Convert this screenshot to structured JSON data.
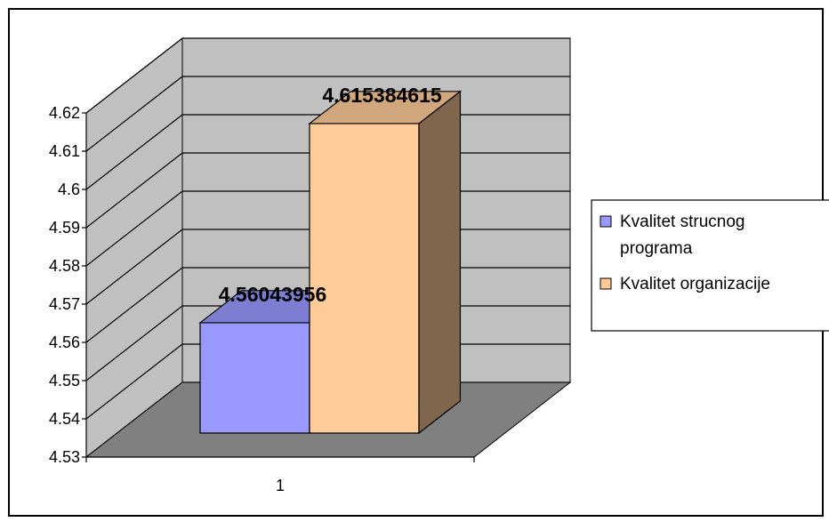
{
  "chart_data": {
    "type": "bar",
    "categories": [
      "1"
    ],
    "series": [
      {
        "name": "Kvalitet strucnog programa",
        "values": [
          4.56043956
        ],
        "label": "4.56043956",
        "color": "#9999ff"
      },
      {
        "name": "Kvalitet organizacije",
        "values": [
          4.615384615
        ],
        "label": "4.615384615",
        "color": "#ffcc99"
      }
    ],
    "legend_lines": [
      [
        "Kvalitet strucnog",
        "programa"
      ],
      [
        "Kvalitet organizacije"
      ]
    ],
    "ylim": [
      4.53,
      4.62
    ],
    "yticks": [
      "4.53",
      "4.54",
      "4.55",
      "4.56",
      "4.57",
      "4.58",
      "4.59",
      "4.6",
      "4.61",
      "4.62"
    ],
    "grid": true,
    "legend_position": "right",
    "three_d": true,
    "wall_color": "#c0c0c0",
    "floor_color": "#808080"
  }
}
